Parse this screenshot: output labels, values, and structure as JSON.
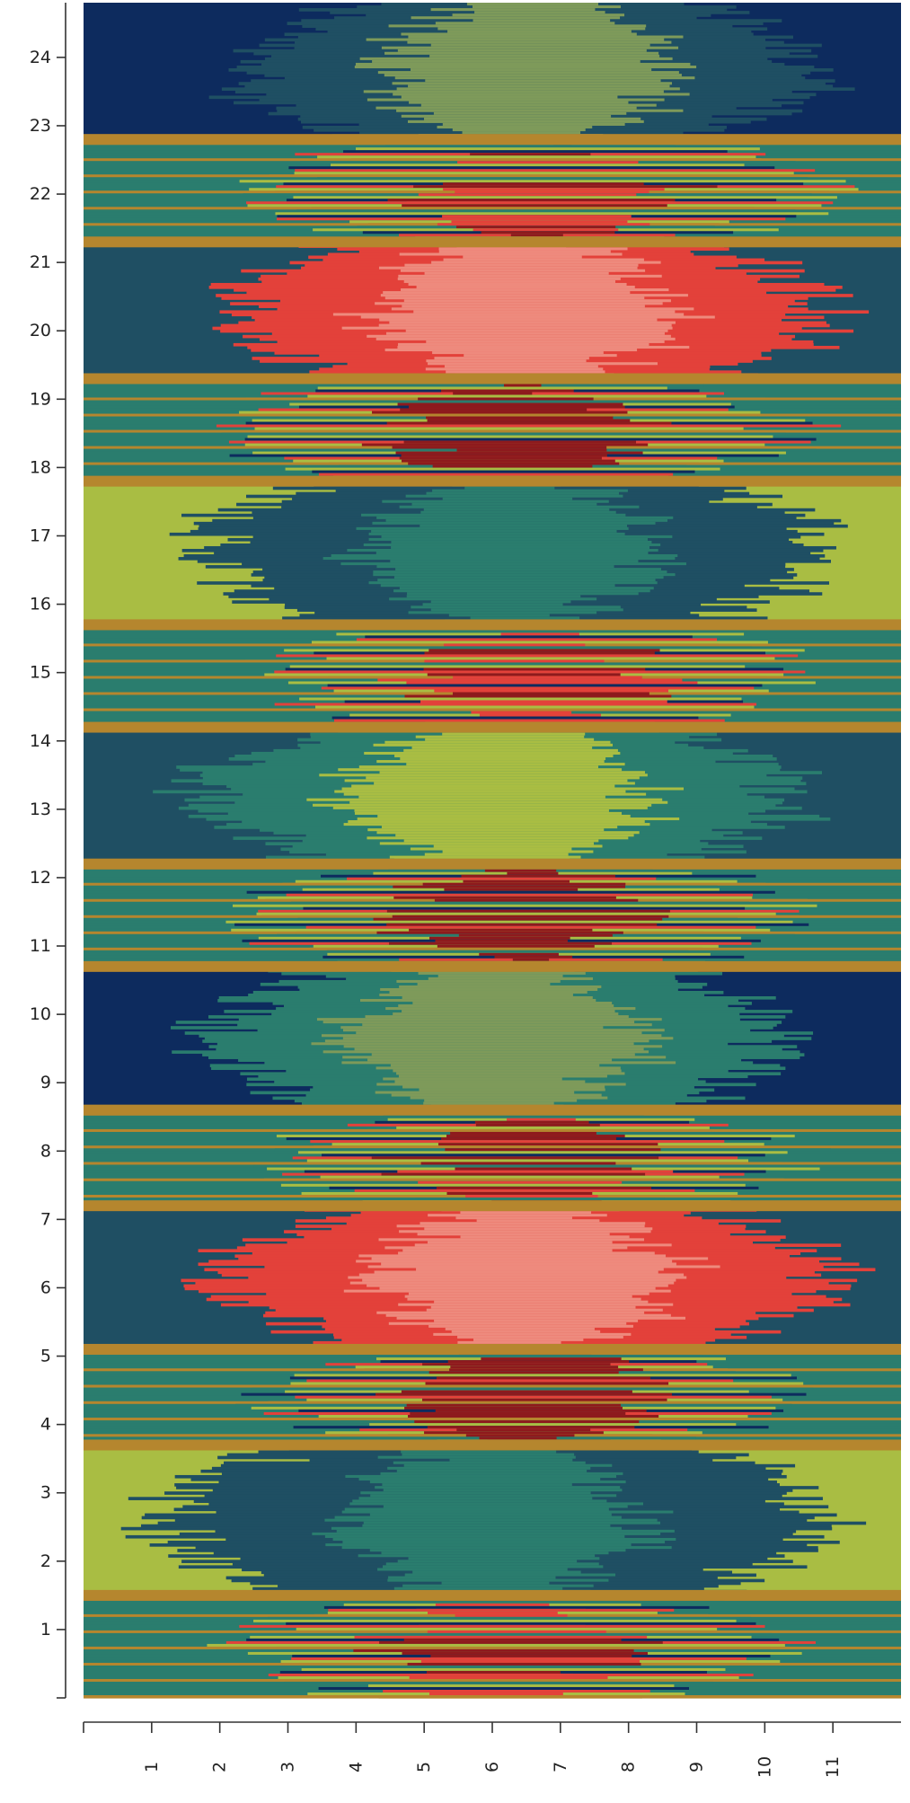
{
  "chart_data": {
    "type": "heatmap",
    "title": "",
    "xlabel": "",
    "ylabel": "",
    "xlim": [
      0,
      12
    ],
    "ylim": [
      0,
      24.8
    ],
    "x_ticks": [
      "1",
      "2",
      "3",
      "4",
      "5",
      "6",
      "7",
      "8",
      "9",
      "10",
      "11"
    ],
    "y_ticks": [
      "1",
      "2",
      "3",
      "4",
      "5",
      "6",
      "7",
      "8",
      "9",
      "10",
      "11",
      "12",
      "13",
      "14",
      "15",
      "16",
      "17",
      "18",
      "19",
      "20",
      "21",
      "22",
      "23",
      "24"
    ],
    "palette": {
      "navy": "#0d2b5e",
      "teal_dark": "#1f4f63",
      "teal": "#2a7d6e",
      "sage": "#7e9a5a",
      "lime": "#a9bd43",
      "ochre": "#b5862e",
      "orange": "#e9a13a",
      "red": "#e3413a",
      "salmon": "#ee8a7d",
      "maroon": "#8e1a1d"
    },
    "border_band_color": "#b5862e",
    "segments": [
      {
        "y": [
          22.8,
          24.8
        ],
        "outer": "navy",
        "mid": "teal_dark",
        "core": "sage",
        "outer_w": 2.6,
        "mid_w": 1.2,
        "center": 6.5
      },
      {
        "y": [
          21.3,
          22.8
        ],
        "outer": "teal",
        "mid": "lime",
        "core": "red",
        "outer_w": 3.2,
        "mid_w": 1.4,
        "center": 6.8,
        "striped": true
      },
      {
        "y": [
          19.3,
          21.3
        ],
        "outer": "teal_dark",
        "mid": "red",
        "core": "salmon",
        "outer_w": 1.6,
        "mid_w": 1.4,
        "center": 6.5
      },
      {
        "y": [
          17.8,
          19.3
        ],
        "outer": "teal",
        "mid": "lime",
        "core": "maroon",
        "outer_w": 2.2,
        "mid_w": 1.4,
        "center": 6.3,
        "striped": true
      },
      {
        "y": [
          15.7,
          17.8
        ],
        "outer": "lime",
        "mid": "teal_dark",
        "core": "teal",
        "outer_w": 2.0,
        "mid_w": 1.6,
        "center": 6.3
      },
      {
        "y": [
          14.2,
          15.7
        ],
        "outer": "teal",
        "mid": "lime",
        "core": "red",
        "outer_w": 3.2,
        "mid_w": 1.2,
        "center": 6.6,
        "striped": true
      },
      {
        "y": [
          12.2,
          14.2
        ],
        "outer": "teal_dark",
        "mid": "teal",
        "core": "lime",
        "outer_w": 2.4,
        "mid_w": 1.3,
        "center": 6.1
      },
      {
        "y": [
          10.7,
          12.2
        ],
        "outer": "teal",
        "mid": "lime",
        "core": "maroon",
        "outer_w": 3.0,
        "mid_w": 1.2,
        "center": 6.4,
        "striped": true
      },
      {
        "y": [
          8.6,
          10.7
        ],
        "outer": "navy",
        "mid": "teal",
        "core": "sage",
        "outer_w": 2.0,
        "mid_w": 1.2,
        "center": 6.0
      },
      {
        "y": [
          7.2,
          8.6
        ],
        "outer": "teal",
        "mid": "lime",
        "core": "red",
        "outer_w": 3.2,
        "mid_w": 1.1,
        "center": 6.6,
        "striped": true
      },
      {
        "y": [
          5.1,
          7.2
        ],
        "outer": "teal_dark",
        "mid": "red",
        "core": "salmon",
        "outer_w": 2.2,
        "mid_w": 1.4,
        "center": 6.5
      },
      {
        "y": [
          3.7,
          5.1
        ],
        "outer": "teal",
        "mid": "lime",
        "core": "maroon",
        "outer_w": 3.2,
        "mid_w": 1.1,
        "center": 6.6,
        "striped": true
      },
      {
        "y": [
          1.5,
          3.7
        ],
        "outer": "lime",
        "mid": "teal_dark",
        "core": "teal",
        "outer_w": 1.8,
        "mid_w": 1.8,
        "center": 6.0
      },
      {
        "y": [
          0.0,
          1.5
        ],
        "outer": "teal",
        "mid": "lime",
        "core": "red",
        "outer_w": 2.6,
        "mid_w": 1.2,
        "center": 6.3,
        "striped": true
      }
    ],
    "border_bands": [
      22.8,
      21.3,
      19.3,
      17.8,
      15.7,
      14.2,
      12.2,
      10.7,
      8.6,
      7.2,
      5.1,
      3.7,
      1.5
    ],
    "grid": false,
    "legend": "none"
  }
}
